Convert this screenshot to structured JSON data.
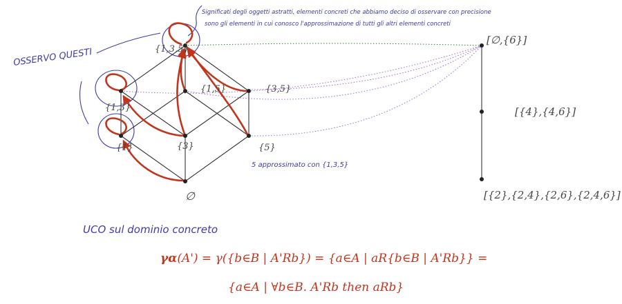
{
  "colors": {
    "lattice": "#333333",
    "arrow": "#c1351d",
    "annotation_blue": "#3b3ba8",
    "dotted_purple": "#9b6bd6",
    "dotted_green": "#2e7d32",
    "label": "#444444"
  },
  "left_lattice": {
    "nodes": [
      {
        "id": "top",
        "label": "{1,3,5}"
      },
      {
        "id": "n13",
        "label": "{1,3}"
      },
      {
        "id": "n15",
        "label": "{1,5}"
      },
      {
        "id": "n35",
        "label": "{3,5}"
      },
      {
        "id": "n1",
        "label": "{1}"
      },
      {
        "id": "n3",
        "label": "{3}"
      },
      {
        "id": "n5",
        "label": "{5}"
      },
      {
        "id": "bottom",
        "label": "∅"
      }
    ]
  },
  "right_chain": {
    "nodes": [
      {
        "id": "rtop",
        "label": "[∅,{6}]"
      },
      {
        "id": "rmid",
        "label": "[{4},{4,6}]"
      },
      {
        "id": "rbot",
        "label": "[{2},{2,4},{2,6},{2,4,6}]"
      }
    ]
  },
  "annotations": {
    "top_line1": "Significati degli oggetti astratti, elementi concreti che abbiamo deciso di osservare con precisione",
    "top_line2": "sono gli elementi in cui conosco l'approssimazione di tutti gli altri elementi concreti",
    "osservo": "OSSERVO QUESTI",
    "approx5": "5 approssimato con {1,3,5}",
    "uco": "UCO sul dominio concreto"
  },
  "formula": {
    "lhs": "γα",
    "line1_rest": "(A') = γ({b∈B | A'Rb}) = {a∈A | aR{b∈B | A'Rb}} =",
    "line2": "{a∈A | ∀b∈B. A'Rb then aRb}"
  }
}
